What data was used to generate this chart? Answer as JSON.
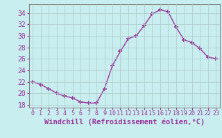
{
  "x": [
    0,
    1,
    2,
    3,
    4,
    5,
    6,
    7,
    8,
    9,
    10,
    11,
    12,
    13,
    14,
    15,
    16,
    17,
    18,
    19,
    20,
    21,
    22,
    23
  ],
  "y": [
    22.0,
    21.5,
    20.8,
    20.0,
    19.5,
    19.2,
    18.5,
    18.3,
    18.3,
    20.8,
    24.8,
    27.3,
    29.5,
    30.0,
    31.8,
    33.8,
    34.5,
    34.2,
    31.5,
    29.3,
    28.8,
    27.8,
    26.3,
    26.0
  ],
  "line_color": "#993399",
  "marker": "+",
  "bg_color": "#c8eef0",
  "grid_color": "#b0c8c8",
  "xlabel": "Windchill (Refroidissement éolien,°C)",
  "ylim": [
    17.5,
    35.5
  ],
  "xlim": [
    -0.5,
    23.5
  ],
  "yticks": [
    18,
    20,
    22,
    24,
    26,
    28,
    30,
    32,
    34
  ],
  "xticks": [
    0,
    1,
    2,
    3,
    4,
    5,
    6,
    7,
    8,
    9,
    10,
    11,
    12,
    13,
    14,
    15,
    16,
    17,
    18,
    19,
    20,
    21,
    22,
    23
  ],
  "tick_color": "#993399",
  "label_color": "#993399",
  "axis_color": "#888888",
  "fontsize_xlabel": 7.5,
  "fontsize_yticks": 7,
  "fontsize_xticks": 6
}
